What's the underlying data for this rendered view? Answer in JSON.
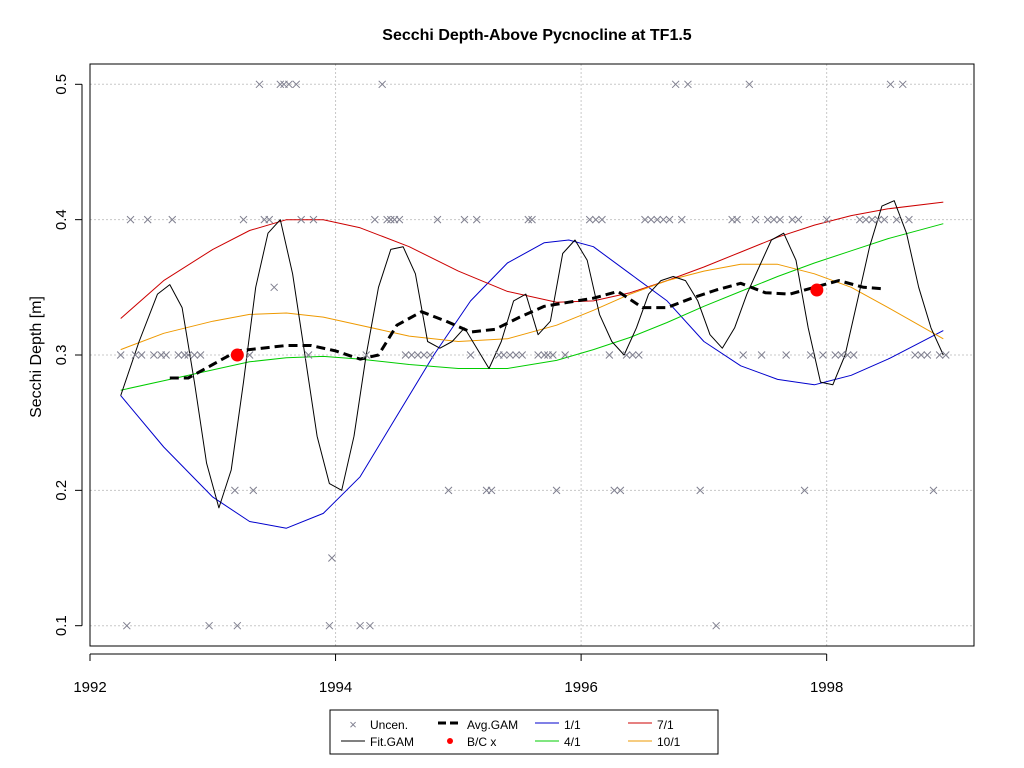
{
  "chart_data": {
    "type": "line",
    "title": "Secchi Depth-Above Pycnocline at TF1.5",
    "xlabel": "",
    "ylabel": "Secchi Depth [m]",
    "xlim": [
      1992,
      1999.2
    ],
    "ylim": [
      0.085,
      0.515
    ],
    "x_ticks": [
      1992,
      1994,
      1996,
      1998
    ],
    "y_ticks": [
      0.1,
      0.2,
      0.3,
      0.4,
      0.5
    ],
    "grid": true,
    "legend_position": "bottom",
    "legend": {
      "uncen": "Uncen.",
      "fit_gam": "Fit.GAM",
      "avg_gam": "Avg.GAM",
      "bc": "B/C x",
      "m1": "1/1",
      "m4": "4/1",
      "m7": "7/1",
      "m10": "10/1"
    },
    "colors": {
      "uncen": "#808090",
      "fit_gam": "#000000",
      "avg_gam": "#000000",
      "bc": "#ff0000",
      "m1": "#0000cc",
      "m4": "#00cc00",
      "m7": "#cc0000",
      "m10": "#ee9900",
      "grid": "#c8c8c8"
    },
    "uncensored_points": [
      [
        1992.25,
        0.3
      ],
      [
        1992.3,
        0.1
      ],
      [
        1992.33,
        0.4
      ],
      [
        1992.37,
        0.3
      ],
      [
        1992.42,
        0.3
      ],
      [
        1992.47,
        0.4
      ],
      [
        1992.52,
        0.3
      ],
      [
        1992.58,
        0.3
      ],
      [
        1992.62,
        0.3
      ],
      [
        1992.67,
        0.4
      ],
      [
        1992.72,
        0.3
      ],
      [
        1992.77,
        0.3
      ],
      [
        1992.8,
        0.3
      ],
      [
        1992.85,
        0.3
      ],
      [
        1992.9,
        0.3
      ],
      [
        1992.97,
        0.1
      ],
      [
        1993.18,
        0.2
      ],
      [
        1993.2,
        0.1
      ],
      [
        1993.25,
        0.4
      ],
      [
        1993.3,
        0.3
      ],
      [
        1993.33,
        0.2
      ],
      [
        1993.38,
        0.5
      ],
      [
        1993.42,
        0.4
      ],
      [
        1993.46,
        0.4
      ],
      [
        1993.5,
        0.35
      ],
      [
        1993.55,
        0.5
      ],
      [
        1993.58,
        0.5
      ],
      [
        1993.62,
        0.5
      ],
      [
        1993.68,
        0.5
      ],
      [
        1993.72,
        0.4
      ],
      [
        1993.78,
        0.3
      ],
      [
        1993.82,
        0.4
      ],
      [
        1993.95,
        0.1
      ],
      [
        1993.97,
        0.15
      ],
      [
        1994.2,
        0.1
      ],
      [
        1994.25,
        0.3
      ],
      [
        1994.28,
        0.1
      ],
      [
        1994.32,
        0.4
      ],
      [
        1994.38,
        0.5
      ],
      [
        1994.42,
        0.4
      ],
      [
        1994.45,
        0.4
      ],
      [
        1994.48,
        0.4
      ],
      [
        1994.52,
        0.4
      ],
      [
        1994.57,
        0.3
      ],
      [
        1994.62,
        0.3
      ],
      [
        1994.67,
        0.3
      ],
      [
        1994.72,
        0.3
      ],
      [
        1994.77,
        0.3
      ],
      [
        1994.83,
        0.4
      ],
      [
        1994.92,
        0.2
      ],
      [
        1995.05,
        0.4
      ],
      [
        1995.1,
        0.3
      ],
      [
        1995.15,
        0.4
      ],
      [
        1995.23,
        0.2
      ],
      [
        1995.27,
        0.2
      ],
      [
        1995.33,
        0.3
      ],
      [
        1995.37,
        0.3
      ],
      [
        1995.42,
        0.3
      ],
      [
        1995.47,
        0.3
      ],
      [
        1995.52,
        0.3
      ],
      [
        1995.57,
        0.4
      ],
      [
        1995.6,
        0.4
      ],
      [
        1995.65,
        0.3
      ],
      [
        1995.7,
        0.3
      ],
      [
        1995.73,
        0.3
      ],
      [
        1995.77,
        0.3
      ],
      [
        1995.8,
        0.2
      ],
      [
        1995.87,
        0.3
      ],
      [
        1996.07,
        0.4
      ],
      [
        1996.12,
        0.4
      ],
      [
        1996.17,
        0.4
      ],
      [
        1996.23,
        0.3
      ],
      [
        1996.27,
        0.2
      ],
      [
        1996.32,
        0.2
      ],
      [
        1996.37,
        0.3
      ],
      [
        1996.42,
        0.3
      ],
      [
        1996.47,
        0.3
      ],
      [
        1996.52,
        0.4
      ],
      [
        1996.57,
        0.4
      ],
      [
        1996.62,
        0.4
      ],
      [
        1996.67,
        0.4
      ],
      [
        1996.72,
        0.4
      ],
      [
        1996.77,
        0.5
      ],
      [
        1996.82,
        0.4
      ],
      [
        1996.87,
        0.5
      ],
      [
        1996.97,
        0.2
      ],
      [
        1997.1,
        0.1
      ],
      [
        1997.23,
        0.4
      ],
      [
        1997.27,
        0.4
      ],
      [
        1997.32,
        0.3
      ],
      [
        1997.37,
        0.5
      ],
      [
        1997.42,
        0.4
      ],
      [
        1997.47,
        0.3
      ],
      [
        1997.52,
        0.4
      ],
      [
        1997.57,
        0.4
      ],
      [
        1997.62,
        0.4
      ],
      [
        1997.67,
        0.3
      ],
      [
        1997.72,
        0.4
      ],
      [
        1997.77,
        0.4
      ],
      [
        1997.82,
        0.2
      ],
      [
        1997.87,
        0.3
      ],
      [
        1997.97,
        0.3
      ],
      [
        1998.0,
        0.4
      ],
      [
        1998.07,
        0.3
      ],
      [
        1998.12,
        0.3
      ],
      [
        1998.17,
        0.3
      ],
      [
        1998.22,
        0.3
      ],
      [
        1998.27,
        0.4
      ],
      [
        1998.32,
        0.4
      ],
      [
        1998.37,
        0.4
      ],
      [
        1998.42,
        0.4
      ],
      [
        1998.47,
        0.4
      ],
      [
        1998.52,
        0.5
      ],
      [
        1998.57,
        0.4
      ],
      [
        1998.62,
        0.5
      ],
      [
        1998.67,
        0.4
      ],
      [
        1998.72,
        0.3
      ],
      [
        1998.77,
        0.3
      ],
      [
        1998.82,
        0.3
      ],
      [
        1998.87,
        0.2
      ],
      [
        1998.92,
        0.3
      ],
      [
        1998.97,
        0.3
      ]
    ],
    "series": [
      {
        "name": "Fit.GAM",
        "x": [
          1992.25,
          1992.4,
          1992.55,
          1992.65,
          1992.75,
          1992.85,
          1992.95,
          1993.05,
          1993.15,
          1993.25,
          1993.35,
          1993.45,
          1993.55,
          1993.65,
          1993.75,
          1993.85,
          1993.95,
          1994.05,
          1994.15,
          1994.25,
          1994.35,
          1994.45,
          1994.55,
          1994.65,
          1994.75,
          1994.85,
          1994.95,
          1995.05,
          1995.15,
          1995.25,
          1995.35,
          1995.45,
          1995.55,
          1995.65,
          1995.75,
          1995.85,
          1995.95,
          1996.05,
          1996.15,
          1996.25,
          1996.35,
          1996.45,
          1996.55,
          1996.65,
          1996.75,
          1996.85,
          1996.95,
          1997.05,
          1997.15,
          1997.25,
          1997.35,
          1997.45,
          1997.55,
          1997.65,
          1997.75,
          1997.85,
          1997.95,
          1998.05,
          1998.15,
          1998.25,
          1998.35,
          1998.45,
          1998.55,
          1998.65,
          1998.75,
          1998.85,
          1998.95
        ],
        "y": [
          0.27,
          0.31,
          0.345,
          0.352,
          0.335,
          0.28,
          0.22,
          0.187,
          0.215,
          0.28,
          0.35,
          0.39,
          0.4,
          0.36,
          0.3,
          0.24,
          0.205,
          0.2,
          0.24,
          0.3,
          0.35,
          0.378,
          0.38,
          0.36,
          0.31,
          0.305,
          0.31,
          0.32,
          0.305,
          0.29,
          0.31,
          0.34,
          0.345,
          0.315,
          0.325,
          0.375,
          0.385,
          0.37,
          0.33,
          0.31,
          0.3,
          0.32,
          0.345,
          0.355,
          0.358,
          0.355,
          0.34,
          0.315,
          0.305,
          0.32,
          0.345,
          0.365,
          0.385,
          0.39,
          0.37,
          0.32,
          0.28,
          0.278,
          0.3,
          0.34,
          0.38,
          0.41,
          0.414,
          0.39,
          0.35,
          0.32,
          0.3
        ]
      },
      {
        "name": "Avg.GAM",
        "x": [
          1992.65,
          1992.8,
          1993.0,
          1993.2,
          1993.4,
          1993.6,
          1993.8,
          1994.0,
          1994.2,
          1994.35,
          1994.5,
          1994.7,
          1994.9,
          1995.1,
          1995.3,
          1995.5,
          1995.7,
          1995.9,
          1996.1,
          1996.3,
          1996.5,
          1996.7,
          1996.9,
          1997.1,
          1997.3,
          1997.5,
          1997.7,
          1997.9,
          1998.1,
          1998.3,
          1998.45
        ],
        "y": [
          0.283,
          0.283,
          0.293,
          0.303,
          0.305,
          0.307,
          0.307,
          0.303,
          0.297,
          0.3,
          0.322,
          0.332,
          0.325,
          0.317,
          0.319,
          0.328,
          0.336,
          0.339,
          0.342,
          0.347,
          0.335,
          0.335,
          0.342,
          0.348,
          0.353,
          0.346,
          0.345,
          0.35,
          0.355,
          0.35,
          0.349
        ]
      },
      {
        "name": "1/1",
        "x": [
          1992.25,
          1992.6,
          1993.0,
          1993.3,
          1993.6,
          1993.9,
          1994.2,
          1994.5,
          1994.8,
          1995.1,
          1995.4,
          1995.7,
          1995.9,
          1996.1,
          1996.4,
          1996.7,
          1997.0,
          1997.3,
          1997.6,
          1997.9,
          1998.2,
          1998.5,
          1998.95
        ],
        "y": [
          0.27,
          0.232,
          0.195,
          0.177,
          0.172,
          0.183,
          0.21,
          0.255,
          0.3,
          0.34,
          0.368,
          0.383,
          0.385,
          0.38,
          0.36,
          0.34,
          0.31,
          0.292,
          0.282,
          0.278,
          0.285,
          0.297,
          0.318
        ]
      },
      {
        "name": "4/1",
        "x": [
          1992.25,
          1992.6,
          1993.0,
          1993.3,
          1993.6,
          1993.9,
          1994.2,
          1994.6,
          1995.0,
          1995.4,
          1995.8,
          1996.1,
          1996.4,
          1996.7,
          1997.0,
          1997.3,
          1997.6,
          1997.9,
          1998.2,
          1998.5,
          1998.95
        ],
        "y": [
          0.274,
          0.281,
          0.289,
          0.295,
          0.298,
          0.299,
          0.297,
          0.293,
          0.29,
          0.29,
          0.296,
          0.304,
          0.313,
          0.324,
          0.336,
          0.347,
          0.358,
          0.368,
          0.377,
          0.386,
          0.397
        ]
      },
      {
        "name": "7/1",
        "x": [
          1992.25,
          1992.6,
          1993.0,
          1993.3,
          1993.6,
          1993.9,
          1994.2,
          1994.6,
          1995.0,
          1995.4,
          1995.8,
          1996.1,
          1996.4,
          1996.7,
          1997.0,
          1997.3,
          1997.6,
          1997.9,
          1998.2,
          1998.5,
          1998.95
        ],
        "y": [
          0.327,
          0.355,
          0.378,
          0.392,
          0.4,
          0.4,
          0.394,
          0.38,
          0.362,
          0.347,
          0.339,
          0.34,
          0.346,
          0.355,
          0.365,
          0.376,
          0.387,
          0.396,
          0.403,
          0.408,
          0.413
        ]
      },
      {
        "name": "10/1",
        "x": [
          1992.25,
          1992.6,
          1993.0,
          1993.3,
          1993.6,
          1993.9,
          1994.2,
          1994.6,
          1995.0,
          1995.4,
          1995.8,
          1996.1,
          1996.4,
          1996.7,
          1997.0,
          1997.3,
          1997.6,
          1997.9,
          1998.2,
          1998.5,
          1998.95
        ],
        "y": [
          0.304,
          0.316,
          0.325,
          0.33,
          0.331,
          0.328,
          0.322,
          0.314,
          0.31,
          0.312,
          0.322,
          0.333,
          0.345,
          0.355,
          0.362,
          0.367,
          0.367,
          0.36,
          0.35,
          0.335,
          0.312
        ]
      }
    ],
    "bc_points": [
      [
        1993.2,
        0.3
      ],
      [
        1997.92,
        0.348
      ]
    ]
  }
}
